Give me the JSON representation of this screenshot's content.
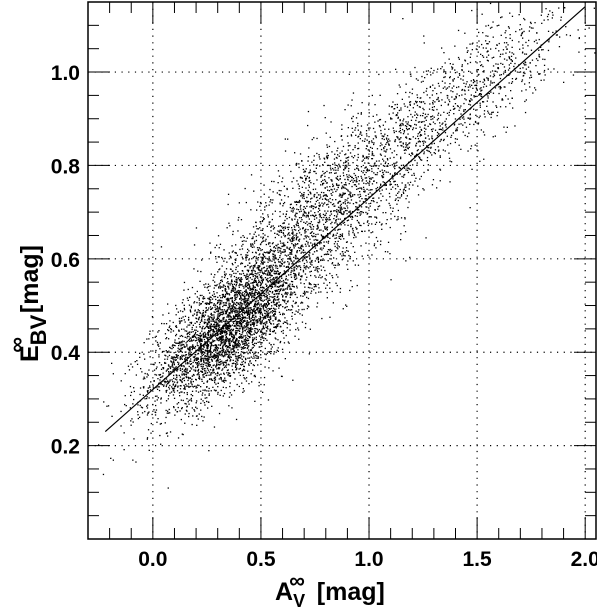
{
  "chart_data": {
    "type": "scatter",
    "xlabel": {
      "main": "A",
      "superscript": "∞",
      "subscript": "V",
      "unit": "[mag]"
    },
    "ylabel": {
      "main": "E",
      "superscript": "∞",
      "subscript": "BV",
      "unit": "[mag]"
    },
    "xlim": [
      -0.3,
      2.05
    ],
    "ylim": [
      0.0,
      1.15
    ],
    "xticks": [
      0.0,
      0.5,
      1.0,
      1.5,
      2.0
    ],
    "xtick_labels": [
      "0.0",
      "0.5",
      "1.0",
      "1.5",
      "2.0"
    ],
    "yticks": [
      0.2,
      0.4,
      0.6,
      0.8,
      1.0
    ],
    "ytick_labels": [
      "0.2",
      "0.4",
      "0.6",
      "0.8",
      "1.0"
    ],
    "grid": true,
    "series": [
      {
        "kind": "scatter-density",
        "n_points": 6500,
        "clusters": [
          {
            "x": 0.35,
            "y": 0.45,
            "sx": 0.18,
            "sy": 0.06,
            "weight": 0.55
          },
          {
            "x": 0.75,
            "y": 0.68,
            "sx": 0.22,
            "sy": 0.08,
            "weight": 0.27
          },
          {
            "x": 1.25,
            "y": 0.88,
            "sx": 0.22,
            "sy": 0.07,
            "weight": 0.13
          },
          {
            "x": 1.65,
            "y": 1.02,
            "sx": 0.15,
            "sy": 0.05,
            "weight": 0.05
          }
        ],
        "color": "#000000"
      },
      {
        "kind": "fit-line",
        "points": [
          [
            -0.22,
            0.23
          ],
          [
            2.0,
            1.14
          ]
        ],
        "color": "#000000"
      }
    ]
  }
}
